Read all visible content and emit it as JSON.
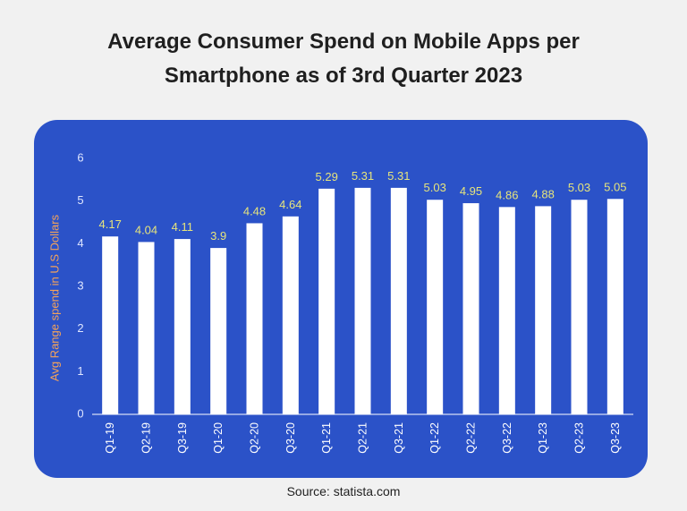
{
  "chart_data": {
    "type": "bar",
    "title": "Average Consumer Spend on Mobile Apps per Smartphone as of 3rd Quarter 2023",
    "y_label": "Avg Range spend in U.S Dollars",
    "source": "Source: statista.com",
    "categories": [
      "Q1-19",
      "Q2-19",
      "Q3-19",
      "Q1-20",
      "Q2-20",
      "Q3-20",
      "Q1-21",
      "Q2-21",
      "Q3-21",
      "Q1-22",
      "Q2-22",
      "Q3-22",
      "Q1-23",
      "Q2-23",
      "Q3-23"
    ],
    "values": [
      4.17,
      4.04,
      4.11,
      3.9,
      4.48,
      4.64,
      5.29,
      5.31,
      5.31,
      5.03,
      4.95,
      4.86,
      4.88,
      5.03,
      5.05
    ],
    "color": "#ffffff",
    "ylim": [
      0,
      6
    ],
    "yticks": [
      0,
      1,
      2,
      3,
      4,
      5,
      6
    ],
    "grid": false
  }
}
